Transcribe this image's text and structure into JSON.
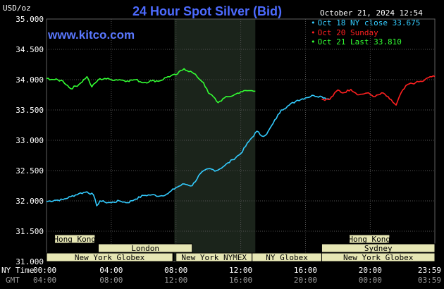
{
  "header": {
    "title": "24 Hour Spot Silver (Bid)",
    "y_unit": "USD/oz",
    "timestamp": "October 21, 2024 12:54",
    "brand": "www.kitco.com"
  },
  "legend": [
    {
      "label": "Oct 18 NY close 33.675",
      "color": "#33ccff"
    },
    {
      "label": "Oct 20 Sunday",
      "color": "#ff2020"
    },
    {
      "label": "Oct 21 Last 33.810",
      "color": "#33ff33"
    }
  ],
  "x_axis": {
    "row1_label": "NY Time",
    "row2_label": "GMT",
    "ticks_ny": [
      "00:00",
      "04:00",
      "08:00",
      "12:00",
      "16:00",
      "20:00",
      "23:59"
    ],
    "ticks_gmt": [
      "04:00",
      "08:00",
      "12:00",
      "16:00",
      "20:00",
      "00:00",
      "03:59"
    ]
  },
  "sessions": [
    {
      "name": "Hong Kong",
      "row": 0,
      "start": 0.5,
      "end": 3.0
    },
    {
      "name": "London",
      "row": 1,
      "start": 3.2,
      "end": 9.0
    },
    {
      "name": "New York Globex",
      "row": 2,
      "start": 0.0,
      "end": 7.8
    },
    {
      "name": "New York NYMEX",
      "row": 2,
      "start": 8.0,
      "end": 12.7
    },
    {
      "name": "NY Globex",
      "row": 2,
      "start": 12.7,
      "end": 17.0
    },
    {
      "name": "Hong Kong",
      "row": 0,
      "start": 18.7,
      "end": 21.2
    },
    {
      "name": "Sydney",
      "row": 1,
      "start": 17.0,
      "end": 23.99
    },
    {
      "name": "New York Globex",
      "row": 2,
      "start": 17.0,
      "end": 23.99
    }
  ],
  "chart_data": {
    "type": "line",
    "title": "24 Hour Spot Silver (Bid)",
    "ylabel": "USD/oz",
    "xlabel": "",
    "xlim": [
      0,
      23.99
    ],
    "ylim": [
      31.0,
      35.0
    ],
    "y_ticks": [
      "35.000",
      "34.500",
      "34.000",
      "33.500",
      "33.000",
      "32.500",
      "32.000",
      "31.500",
      "31.000"
    ],
    "grid": true,
    "legend_position": "top-right",
    "highlight_hours": [
      7.9,
      12.9
    ],
    "series": [
      {
        "name": "Oct 18 NY close 33.675",
        "color": "#33ccff",
        "x": [
          0,
          0.5,
          1.0,
          1.5,
          2.0,
          2.5,
          2.9,
          3.1,
          3.3,
          3.6,
          4.0,
          4.5,
          5.0,
          5.5,
          6.0,
          6.5,
          7.0,
          7.5,
          8.0,
          8.5,
          9.0,
          9.5,
          10.0,
          10.5,
          11.0,
          11.5,
          12.0,
          12.5,
          13.0,
          13.3,
          13.6,
          14.0,
          14.5,
          15.0,
          15.5,
          16.0,
          16.5,
          17.0,
          17.5
        ],
        "y": [
          31.99,
          32.01,
          32.02,
          32.07,
          32.12,
          32.15,
          32.1,
          31.92,
          32.0,
          31.98,
          31.97,
          32.0,
          31.97,
          32.03,
          32.09,
          32.1,
          32.08,
          32.12,
          32.22,
          32.28,
          32.25,
          32.45,
          32.53,
          32.5,
          32.58,
          32.68,
          32.78,
          32.98,
          33.15,
          33.07,
          33.1,
          33.28,
          33.5,
          33.58,
          33.66,
          33.7,
          33.74,
          33.72,
          33.675
        ]
      },
      {
        "name": "Oct 20 Sunday",
        "color": "#ff2020",
        "x": [
          17.0,
          17.5,
          18.0,
          18.3,
          18.8,
          19.3,
          19.8,
          20.3,
          20.8,
          21.2,
          21.6,
          21.9,
          22.3,
          22.8,
          23.3,
          23.7,
          23.99
        ],
        "y": [
          33.675,
          33.675,
          33.83,
          33.78,
          33.84,
          33.75,
          33.78,
          33.72,
          33.78,
          33.68,
          33.58,
          33.78,
          33.92,
          33.95,
          33.98,
          34.05,
          34.05
        ]
      },
      {
        "name": "Oct 21 Last 33.810",
        "color": "#33ff33",
        "x": [
          0,
          0.5,
          1.0,
          1.5,
          2.0,
          2.5,
          2.8,
          3.2,
          3.6,
          4.0,
          4.5,
          5.0,
          5.5,
          6.0,
          6.5,
          7.0,
          7.5,
          8.0,
          8.5,
          9.0,
          9.3,
          9.7,
          10.0,
          10.3,
          10.6,
          11.0,
          11.3,
          11.6,
          12.0,
          12.5,
          12.9
        ],
        "y": [
          34.02,
          34.0,
          33.98,
          33.85,
          33.92,
          34.05,
          33.88,
          34.0,
          34.02,
          34.0,
          34.0,
          33.98,
          34.0,
          33.95,
          33.98,
          33.98,
          34.05,
          34.08,
          34.18,
          34.12,
          34.05,
          33.95,
          33.78,
          33.72,
          33.62,
          33.7,
          33.72,
          33.75,
          33.8,
          33.82,
          33.81
        ]
      }
    ]
  }
}
